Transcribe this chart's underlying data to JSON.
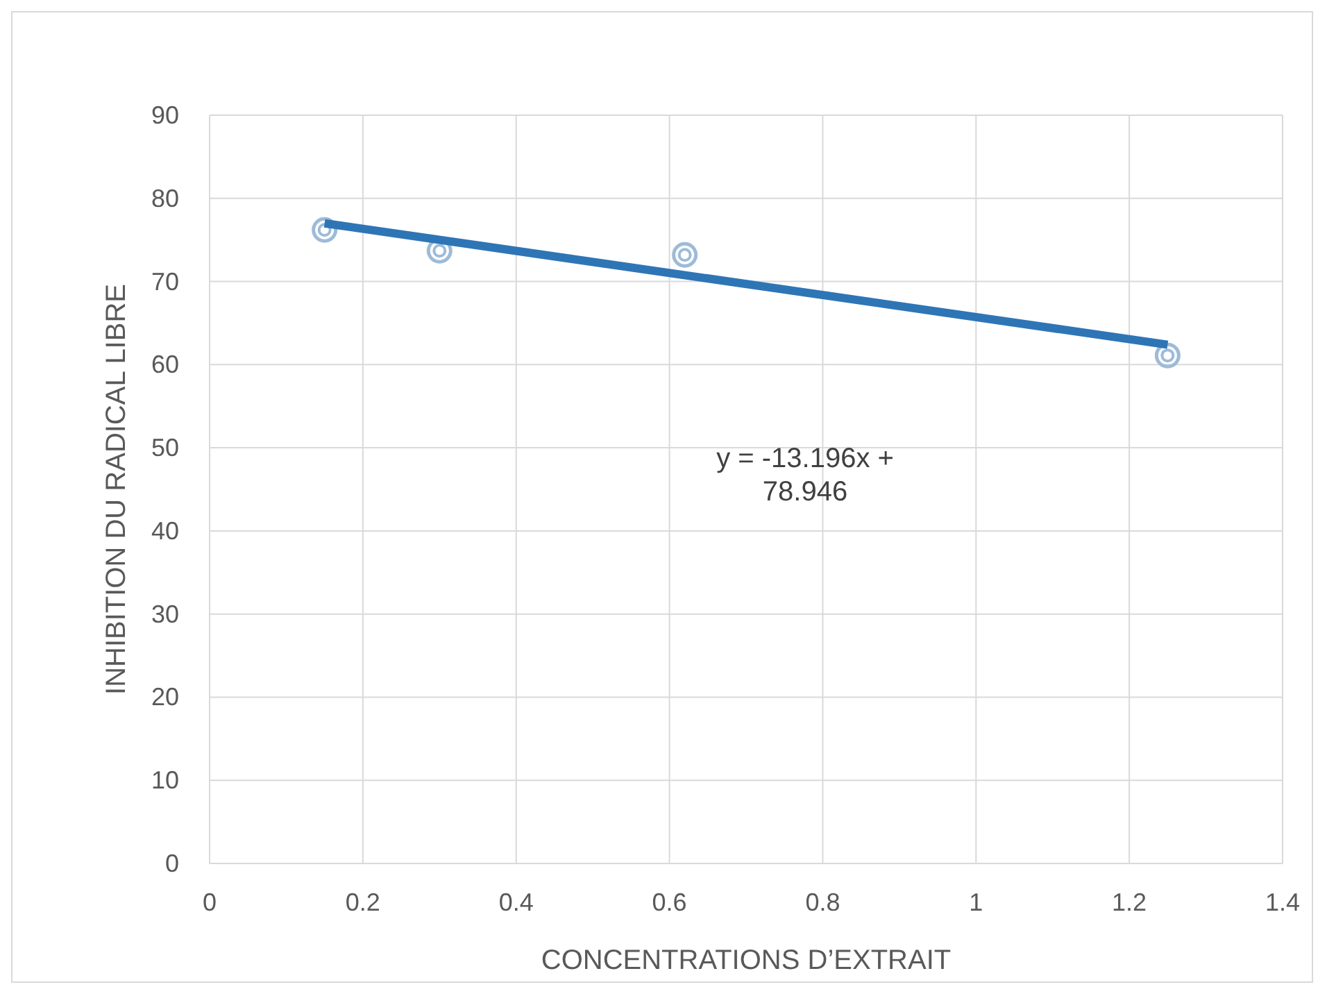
{
  "chart_data": {
    "type": "scatter",
    "xlabel": "CONCENTRATIONS D’EXTRAIT",
    "ylabel": "INHIBITION DU RADICAL LIBRE",
    "xlim": [
      0,
      1.4
    ],
    "xticks": [
      0,
      0.2,
      0.4,
      0.6,
      0.8,
      1,
      1.2,
      1.4
    ],
    "ylim": [
      0,
      90
    ],
    "yticks": [
      0,
      10,
      20,
      30,
      40,
      50,
      60,
      70,
      80,
      90
    ],
    "grid": true,
    "series": [
      {
        "marker": "circle",
        "color": "#9dbbd9",
        "x": [
          0.15,
          0.3,
          0.62,
          1.25
        ],
        "values": [
          76.2,
          73.7,
          73.2,
          61.1
        ]
      },
      {
        "type": "line",
        "color": "#2e75b6",
        "x": [
          0.15,
          1.25
        ],
        "values": [
          77,
          62.4
        ]
      }
    ],
    "annotations": [
      "y = -13.196x + 78.946"
    ]
  }
}
